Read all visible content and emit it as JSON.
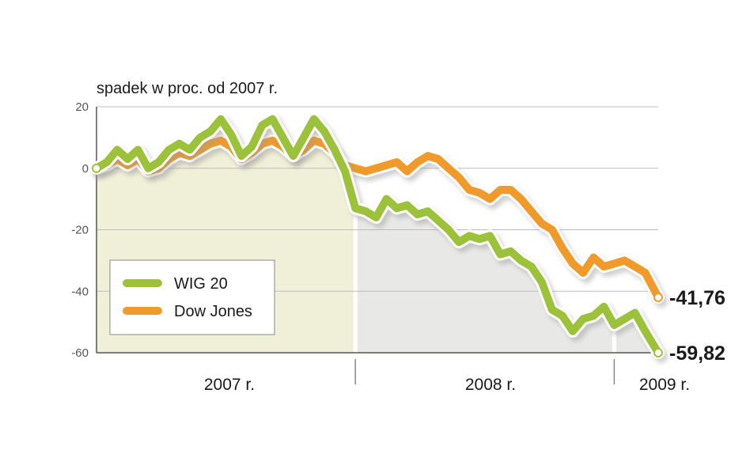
{
  "chart_data": {
    "type": "line",
    "ylabel": "spadek w proc. od 2007 r.",
    "ylim": [
      -60,
      20
    ],
    "yticks": [
      20,
      0,
      -20,
      -40,
      -60
    ],
    "ytick_labels": [
      "20",
      "0",
      "-20",
      "-40",
      "-60"
    ],
    "grid": true,
    "legend_position": "bottom-left",
    "colors": {
      "WIG 20": "#9cc13a",
      "Dow Jones": "#ef9a2a"
    },
    "periods": [
      {
        "label": "2007 r.",
        "start": 0,
        "end": 100,
        "shade": "#f0efd7"
      },
      {
        "label": "2008 r.",
        "start": 100,
        "end": 200,
        "shade": "#e8e8e6"
      },
      {
        "label": "2009 r.",
        "start": 200,
        "end": 217,
        "shade": "#e8e8e6"
      }
    ],
    "x": [
      0,
      4,
      8,
      12,
      16,
      20,
      24,
      28,
      32,
      36,
      40,
      44,
      48,
      52,
      56,
      60,
      64,
      68,
      72,
      76,
      80,
      84,
      88,
      92,
      96,
      100,
      104,
      108,
      112,
      116,
      120,
      124,
      128,
      132,
      136,
      140,
      144,
      148,
      152,
      156,
      160,
      164,
      168,
      172,
      176,
      180,
      184,
      188,
      192,
      196,
      200,
      204,
      208,
      212,
      217
    ],
    "series": [
      {
        "name": "WIG 20",
        "values": [
          0,
          2,
          6,
          3,
          6,
          0,
          2,
          6,
          8,
          6,
          10,
          12,
          16,
          11,
          4,
          7,
          14,
          16,
          10,
          4,
          10,
          16,
          12,
          6,
          -1,
          -13,
          -14,
          -16,
          -10,
          -13,
          -12,
          -15,
          -14,
          -17,
          -20,
          -24,
          -22,
          -23,
          -22,
          -28,
          -27,
          -30,
          -32,
          -37,
          -46,
          -48,
          -53,
          -49,
          -48,
          -45,
          -51,
          -49,
          -47,
          -53,
          -60
        ]
      },
      {
        "name": "Dow Jones",
        "values": [
          0,
          1,
          3,
          1,
          3,
          -1,
          0,
          3,
          5,
          4,
          6,
          8,
          9,
          7,
          3,
          5,
          8,
          9,
          7,
          4,
          6,
          9,
          8,
          5,
          1,
          0,
          -1,
          0,
          1,
          2,
          -1,
          2,
          4,
          3,
          0,
          -3,
          -7,
          -8,
          -10,
          -7,
          -7,
          -10,
          -14,
          -18,
          -20,
          -26,
          -31,
          -34,
          -29,
          -32,
          -31,
          -30,
          -32,
          -34,
          -42
        ]
      }
    ],
    "end_labels": {
      "WIG 20": "-59,82",
      "Dow Jones": "-41,76"
    }
  }
}
